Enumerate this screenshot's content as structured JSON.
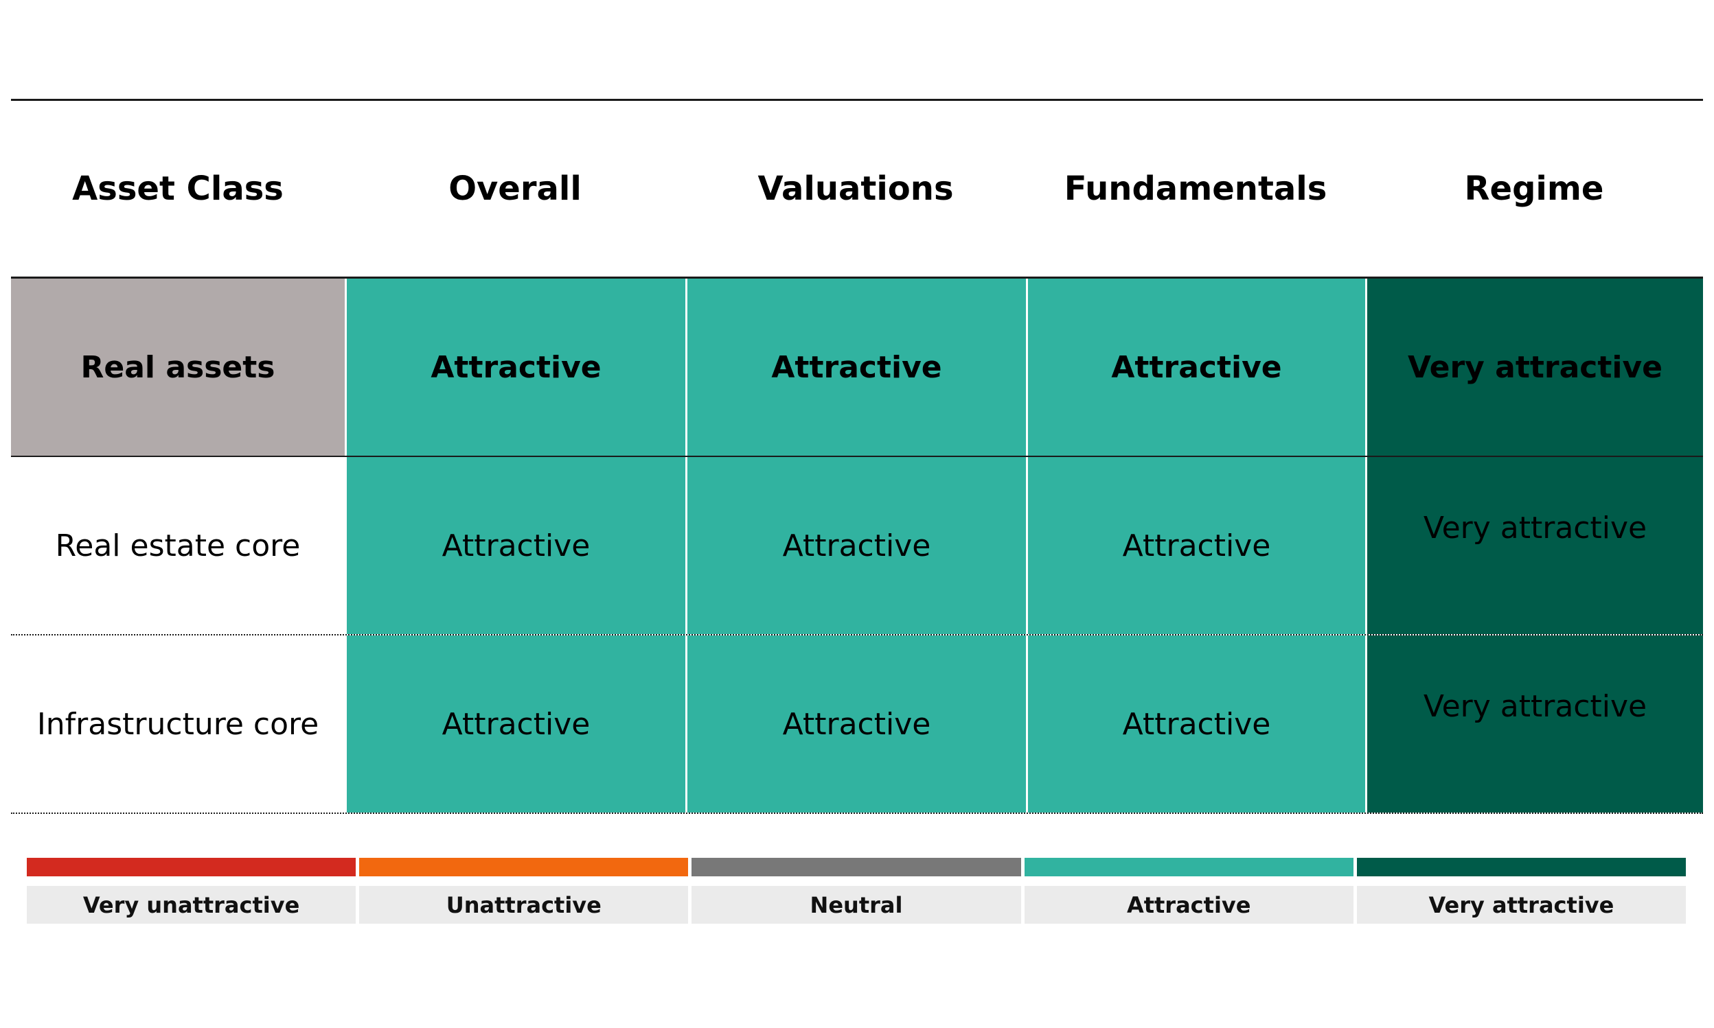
{
  "table": {
    "headers": [
      "Asset Class",
      "Overall",
      "Valuations",
      "Fundamentals",
      "Regime"
    ],
    "rows": [
      {
        "asset": "Real assets",
        "overall": "Attractive",
        "valuations": "Attractive",
        "fundamentals": "Attractive",
        "regime": "Very attractive"
      },
      {
        "asset": "Real estate core",
        "overall": "Attractive",
        "valuations": "Attractive",
        "fundamentals": "Attractive",
        "regime": "Very attractive"
      },
      {
        "asset": "Infrastructure core",
        "overall": "Attractive",
        "valuations": "Attractive",
        "fundamentals": "Attractive",
        "regime": "Very attractive"
      }
    ]
  },
  "legend": [
    {
      "label": "Very unattractive",
      "color": "#d32a1f"
    },
    {
      "label": "Unattractive",
      "color": "#f2680f"
    },
    {
      "label": "Neutral",
      "color": "#787878"
    },
    {
      "label": "Attractive",
      "color": "#31b3a0"
    },
    {
      "label": "Very attractive",
      "color": "#005b49"
    }
  ],
  "colors": {
    "asset_group_bg": "#b1aaaa",
    "attractive_bg": "#31b3a0",
    "very_attractive_bg": "#005b49"
  }
}
